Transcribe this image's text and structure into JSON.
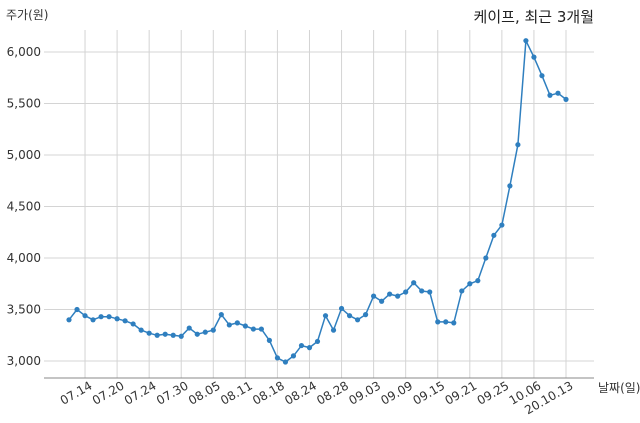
{
  "chart_data": {
    "type": "line",
    "title": "케이프, 최근 3개월",
    "ylabel": "주가(원)",
    "xlabel": "날짜(일)",
    "ylim": [
      2900,
      6300
    ],
    "yticks": [
      3000,
      3500,
      4000,
      4500,
      5000,
      5500,
      6000
    ],
    "ytick_labels": [
      "3,000",
      "3,500",
      "4,000",
      "4,500",
      "5,000",
      "5,500",
      "6,000"
    ],
    "xtick_labels": [
      "07.14",
      "07.20",
      "07.24",
      "07.30",
      "08.05",
      "08.11",
      "08.18",
      "08.24",
      "08.28",
      "09.03",
      "09.09",
      "09.15",
      "09.21",
      "09.25",
      "10.06",
      "20.10.13"
    ],
    "xtick_indices": [
      2,
      6,
      10,
      14,
      18,
      22,
      26,
      30,
      34,
      38,
      42,
      46,
      50,
      54,
      58,
      62
    ],
    "grid": true,
    "line_color": "#2f7fbf",
    "series": [
      {
        "values": [
          3400,
          3500,
          3440,
          3400,
          3430,
          3430,
          3410,
          3390,
          3360,
          3300,
          3270,
          3250,
          3260,
          3250,
          3240,
          3320,
          3260,
          3280,
          3300,
          3450,
          3350,
          3370,
          3340,
          3310,
          3310,
          3200,
          3030,
          2990,
          3050,
          3150,
          3130,
          3190,
          3440,
          3300,
          3510,
          3440,
          3400,
          3450,
          3630,
          3580,
          3650,
          3630,
          3670,
          3760,
          3680,
          3670,
          3380,
          3380,
          3370,
          3680,
          3750,
          3780,
          4000,
          4220,
          4320,
          4700,
          5100,
          6110,
          5950,
          5770,
          5580,
          5600,
          5540
        ]
      }
    ]
  }
}
